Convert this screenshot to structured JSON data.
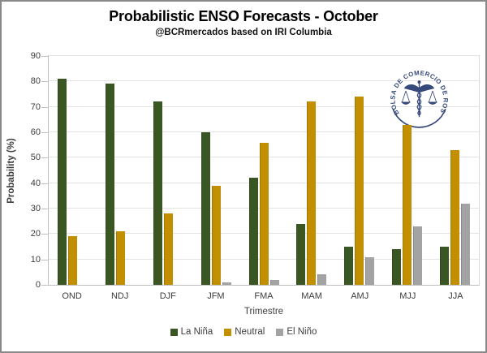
{
  "chart_data": {
    "type": "bar",
    "title": "Probabilistic ENSO Forecasts - October",
    "subtitle": "@BCRmercados based on IRI Columbia",
    "xlabel": "Trimestre",
    "ylabel": "Probability (%)",
    "categories": [
      "OND",
      "NDJ",
      "DJF",
      "JFM",
      "FMA",
      "MAM",
      "AMJ",
      "MJJ",
      "JJA"
    ],
    "series": [
      {
        "name": "La Niña",
        "color": "#3A5623",
        "values": [
          81,
          79,
          72,
          60,
          42,
          24,
          15,
          14,
          15
        ]
      },
      {
        "name": "Neutral",
        "color": "#C28F00",
        "values": [
          19,
          21,
          28,
          39,
          56,
          72,
          74,
          63,
          53
        ]
      },
      {
        "name": "El Niño",
        "color": "#A3A3A3",
        "values": [
          0,
          0,
          0,
          1,
          2,
          4,
          11,
          23,
          32
        ]
      }
    ],
    "ylim": [
      0,
      90
    ],
    "yticks": [
      0,
      10,
      20,
      30,
      40,
      50,
      60,
      70,
      80,
      90
    ],
    "grid": true,
    "legend_position": "bottom"
  },
  "watermark": {
    "text": "BOLSA DE COMERCIO DE ROSARIO",
    "color": "#35497B"
  }
}
